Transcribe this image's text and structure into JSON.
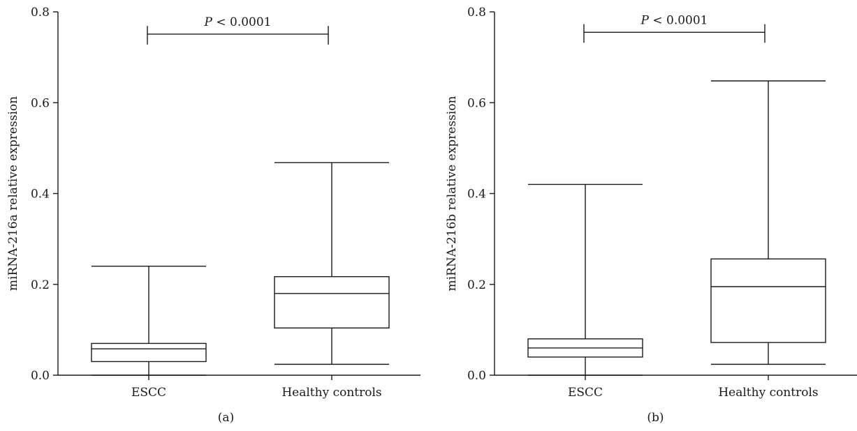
{
  "chart_data": [
    {
      "type": "box",
      "panel_label": "(a)",
      "ylabel": "miRNA-216a relative expression",
      "ylim": [
        0,
        0.8
      ],
      "yticks": [
        0.0,
        0.2,
        0.4,
        0.6,
        0.8
      ],
      "ytick_labels": [
        "0.0",
        "0.2",
        "0.4",
        "0.6",
        "0.8"
      ],
      "categories": [
        "ESCC",
        "Healthy controls"
      ],
      "boxes": [
        {
          "category": "ESCC",
          "min": 0.0,
          "q1": 0.03,
          "median": 0.058,
          "q3": 0.07,
          "max": 0.24
        },
        {
          "category": "Healthy controls",
          "min": 0.024,
          "q1": 0.104,
          "median": 0.18,
          "q3": 0.217,
          "max": 0.468
        }
      ],
      "annotation": {
        "p_symbol": "P",
        "p_text": "< 0.0001",
        "y": 0.751,
        "tick_bottom": 0.728
      }
    },
    {
      "type": "box",
      "panel_label": "(b)",
      "ylabel": "miRNA-216b relative expression",
      "ylim": [
        0,
        0.8
      ],
      "yticks": [
        0.0,
        0.2,
        0.4,
        0.6,
        0.8
      ],
      "ytick_labels": [
        "0.0",
        "0.2",
        "0.4",
        "0.6",
        "0.8"
      ],
      "categories": [
        "ESCC",
        "Healthy controls"
      ],
      "boxes": [
        {
          "category": "ESCC",
          "min": 0.0,
          "q1": 0.04,
          "median": 0.06,
          "q3": 0.08,
          "max": 0.42
        },
        {
          "category": "Healthy controls",
          "min": 0.024,
          "q1": 0.072,
          "median": 0.195,
          "q3": 0.256,
          "max": 0.648
        }
      ],
      "annotation": {
        "p_symbol": "P",
        "p_text": "< 0.0001",
        "y": 0.755,
        "tick_bottom": 0.732
      }
    }
  ]
}
